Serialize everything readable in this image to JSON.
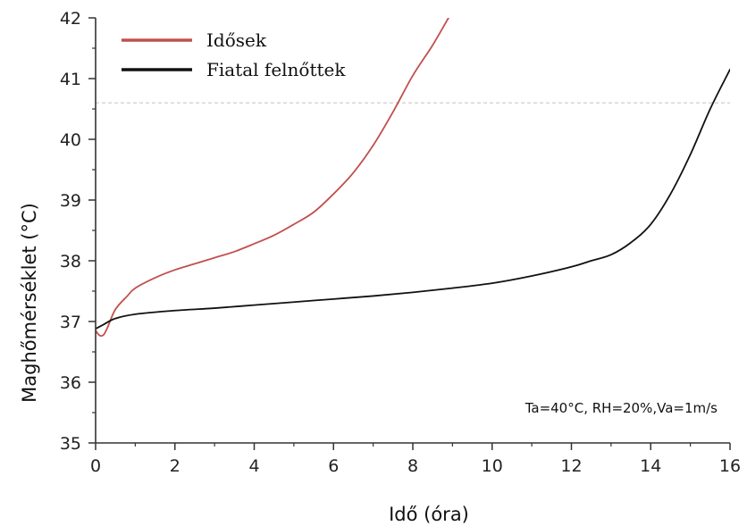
{
  "chart_data": {
    "type": "line",
    "xlabel": "Idő (óra)",
    "ylabel": "Maghőmérséklet (°C)",
    "xlim": [
      0,
      16
    ],
    "ylim": [
      35,
      42
    ],
    "xticks": [
      0,
      2,
      4,
      6,
      8,
      10,
      12,
      14,
      16
    ],
    "yticks": [
      35,
      36,
      37,
      38,
      39,
      40,
      41,
      42
    ],
    "legend_position": "top-left",
    "annotation": "Ta=40°C, RH=20%,Va=1m/s",
    "reference_line": {
      "y": 40.6,
      "style": "dashed",
      "color": "#c8c8c8"
    },
    "series": [
      {
        "name": "Idősek",
        "color": "#c0504d",
        "points": [
          [
            0.0,
            36.85
          ],
          [
            0.1,
            36.77
          ],
          [
            0.2,
            36.78
          ],
          [
            0.3,
            36.9
          ],
          [
            0.5,
            37.2
          ],
          [
            0.8,
            37.42
          ],
          [
            1.0,
            37.55
          ],
          [
            1.5,
            37.72
          ],
          [
            2.0,
            37.85
          ],
          [
            2.5,
            37.95
          ],
          [
            3.0,
            38.05
          ],
          [
            3.5,
            38.15
          ],
          [
            4.0,
            38.28
          ],
          [
            4.5,
            38.42
          ],
          [
            5.0,
            38.6
          ],
          [
            5.5,
            38.8
          ],
          [
            6.0,
            39.1
          ],
          [
            6.5,
            39.45
          ],
          [
            7.0,
            39.9
          ],
          [
            7.5,
            40.45
          ],
          [
            8.0,
            41.05
          ],
          [
            8.5,
            41.55
          ],
          [
            8.9,
            42.0
          ]
        ]
      },
      {
        "name": "Fiatal felnőttek",
        "color": "#111111",
        "points": [
          [
            0.0,
            36.88
          ],
          [
            0.2,
            36.95
          ],
          [
            0.5,
            37.05
          ],
          [
            1.0,
            37.12
          ],
          [
            2.0,
            37.18
          ],
          [
            3.0,
            37.22
          ],
          [
            4.0,
            37.27
          ],
          [
            5.0,
            37.32
          ],
          [
            6.0,
            37.37
          ],
          [
            7.0,
            37.42
          ],
          [
            8.0,
            37.48
          ],
          [
            9.0,
            37.55
          ],
          [
            10.0,
            37.63
          ],
          [
            11.0,
            37.75
          ],
          [
            12.0,
            37.9
          ],
          [
            12.5,
            38.0
          ],
          [
            13.0,
            38.1
          ],
          [
            13.5,
            38.3
          ],
          [
            14.0,
            38.6
          ],
          [
            14.5,
            39.1
          ],
          [
            15.0,
            39.75
          ],
          [
            15.5,
            40.5
          ],
          [
            16.0,
            41.15
          ]
        ]
      }
    ]
  }
}
